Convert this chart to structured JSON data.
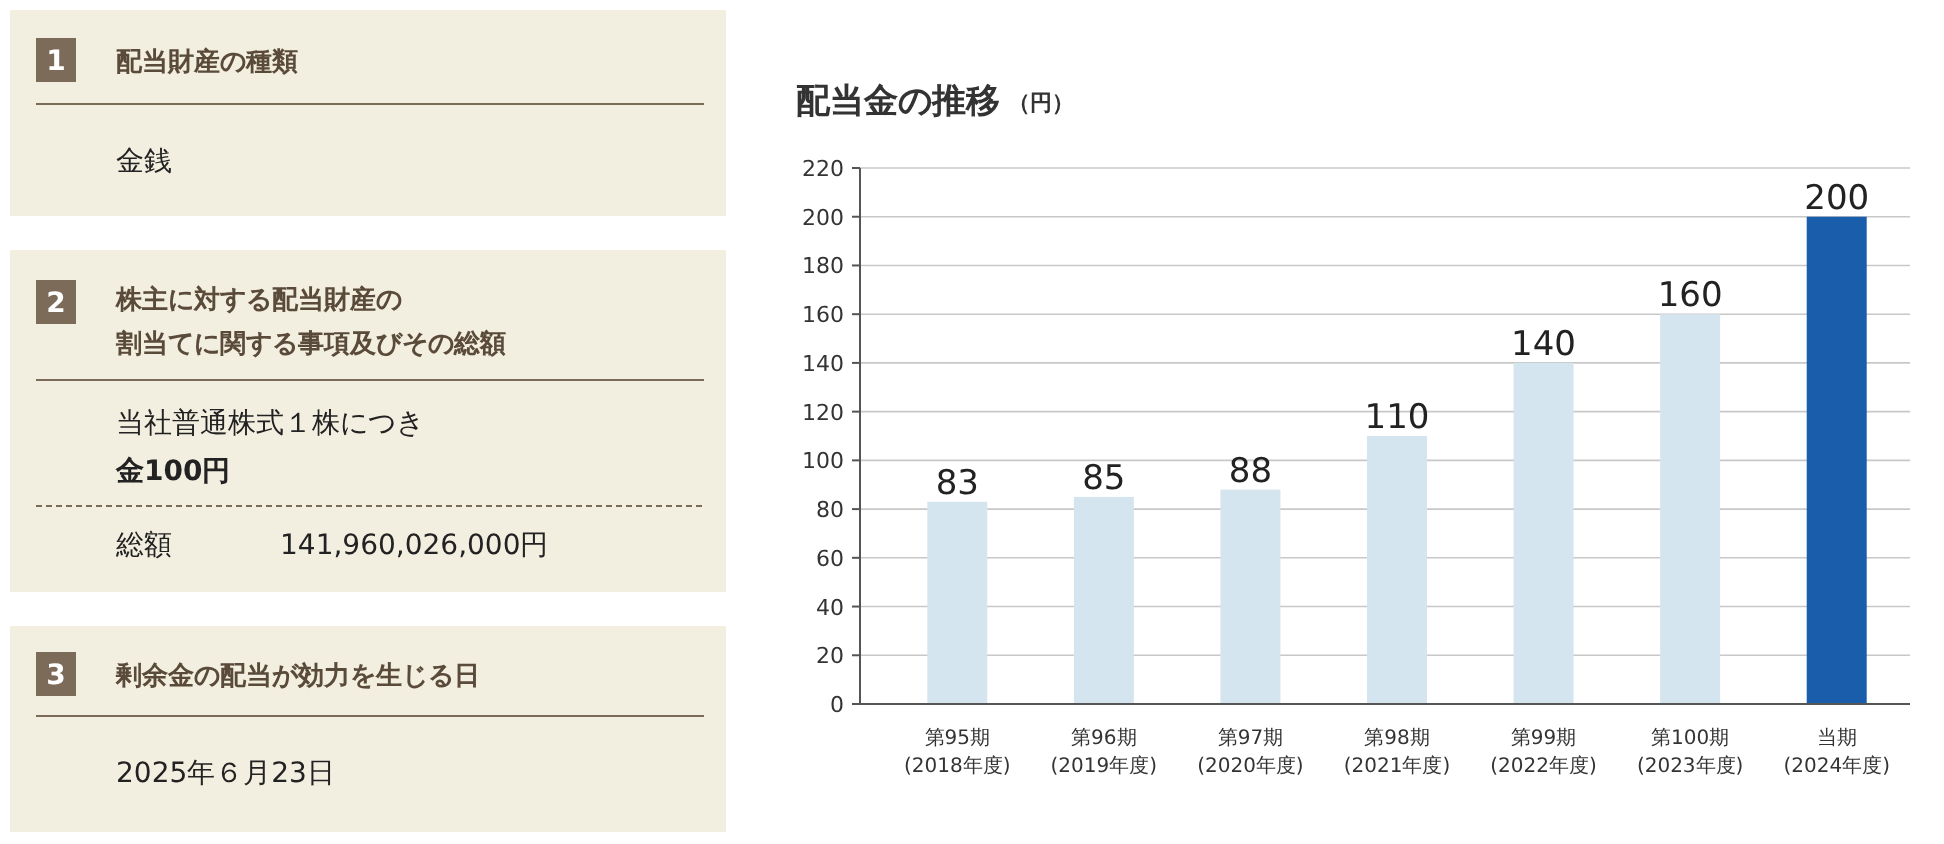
{
  "chart_data": [
    {
      "type": "other",
      "annotations": [
        "1",
        "配当財産の種類",
        "金銭",
        "2",
        "株主に対する配当財産の割当てに関する事項及びその総額",
        "当社普通株式１株につき",
        "金100円",
        "総額",
        "141,960,026,000円",
        "3",
        "剰余金の配当が効力を生じる日",
        "2025年６月23日"
      ]
    },
    {
      "type": "bar",
      "title": "配当金の推移",
      "subtitle": "（円）",
      "categories": [
        "第95期\n(2018年度)",
        "第96期\n(2019年度)",
        "第97期\n(2020年度)",
        "第98期\n(2021年度)",
        "第99期\n(2022年度)",
        "第100期\n(2023年度)",
        "当期\n(2024年度)"
      ],
      "values": [
        83,
        85,
        88,
        110,
        140,
        160,
        200
      ],
      "colors": [
        "#d5e5f0",
        "#d5e5f0",
        "#d5e5f0",
        "#d5e5f0",
        "#d5e5f0",
        "#d5e5f0",
        "#1a5eab"
      ],
      "ylim": [
        0,
        220
      ],
      "yticks": [
        0,
        20,
        40,
        60,
        80,
        100,
        120,
        140,
        160,
        180,
        200,
        220
      ],
      "grid": "y",
      "data_labels": true
    }
  ]
}
